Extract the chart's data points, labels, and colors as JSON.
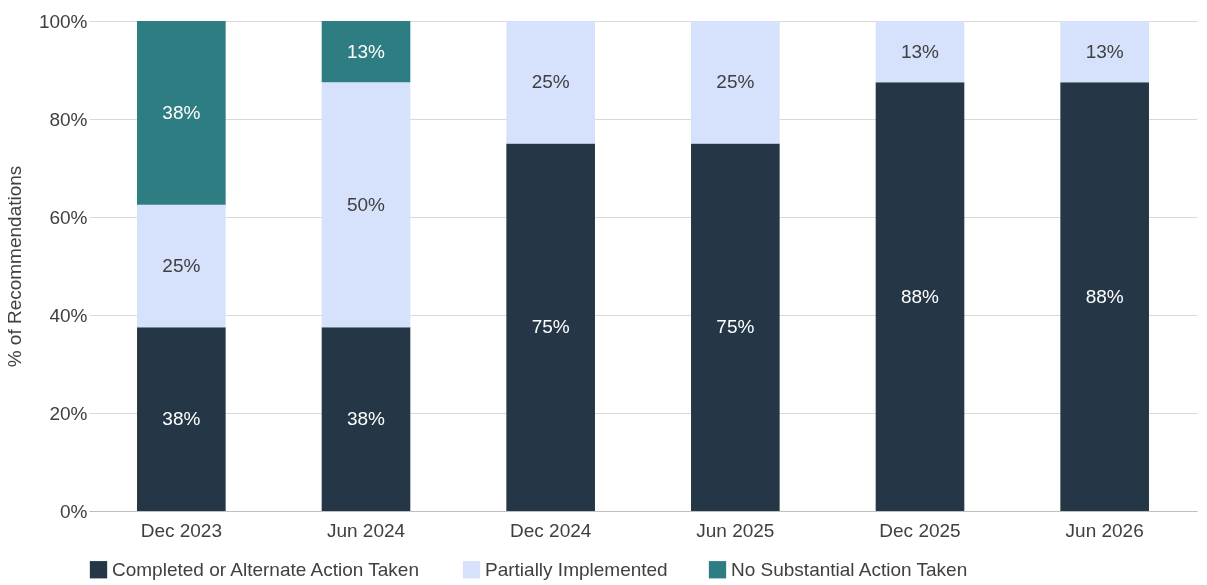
{
  "chart_data": {
    "type": "bar",
    "stacked": true,
    "ylabel": "% of Recommendations",
    "categories": [
      "Dec 2023",
      "Jun 2024",
      "Dec 2024",
      "Jun 2025",
      "Dec 2025",
      "Jun 2026"
    ],
    "series": [
      {
        "name": "Completed or Alternate Action Taken",
        "color": "#253746",
        "values": [
          37.5,
          37.5,
          75,
          75,
          87.5,
          87.5
        ],
        "value_labels": [
          "38%",
          "38%",
          "75%",
          "75%",
          "88%",
          "88%"
        ]
      },
      {
        "name": "Partially Implemented",
        "color": "#d6e1fc",
        "values": [
          25,
          50,
          25,
          25,
          12.5,
          12.5
        ],
        "value_labels": [
          "25%",
          "50%",
          "25%",
          "25%",
          "13%",
          "13%"
        ]
      },
      {
        "name": "No Substantial Action Taken",
        "color": "#2e7d83",
        "values": [
          37.5,
          12.5,
          null,
          null,
          null,
          null
        ],
        "value_labels": [
          "38%",
          "13%",
          null,
          null,
          null,
          null
        ]
      }
    ],
    "ylim": [
      0,
      100
    ],
    "yticks": [
      {
        "value": 0,
        "label": "0%"
      },
      {
        "value": 20,
        "label": "20%"
      },
      {
        "value": 40,
        "label": "40%"
      },
      {
        "value": 60,
        "label": "60%"
      },
      {
        "value": 80,
        "label": "80%"
      },
      {
        "value": 100,
        "label": "100%"
      }
    ],
    "grid": "y",
    "legend": "bottom"
  }
}
